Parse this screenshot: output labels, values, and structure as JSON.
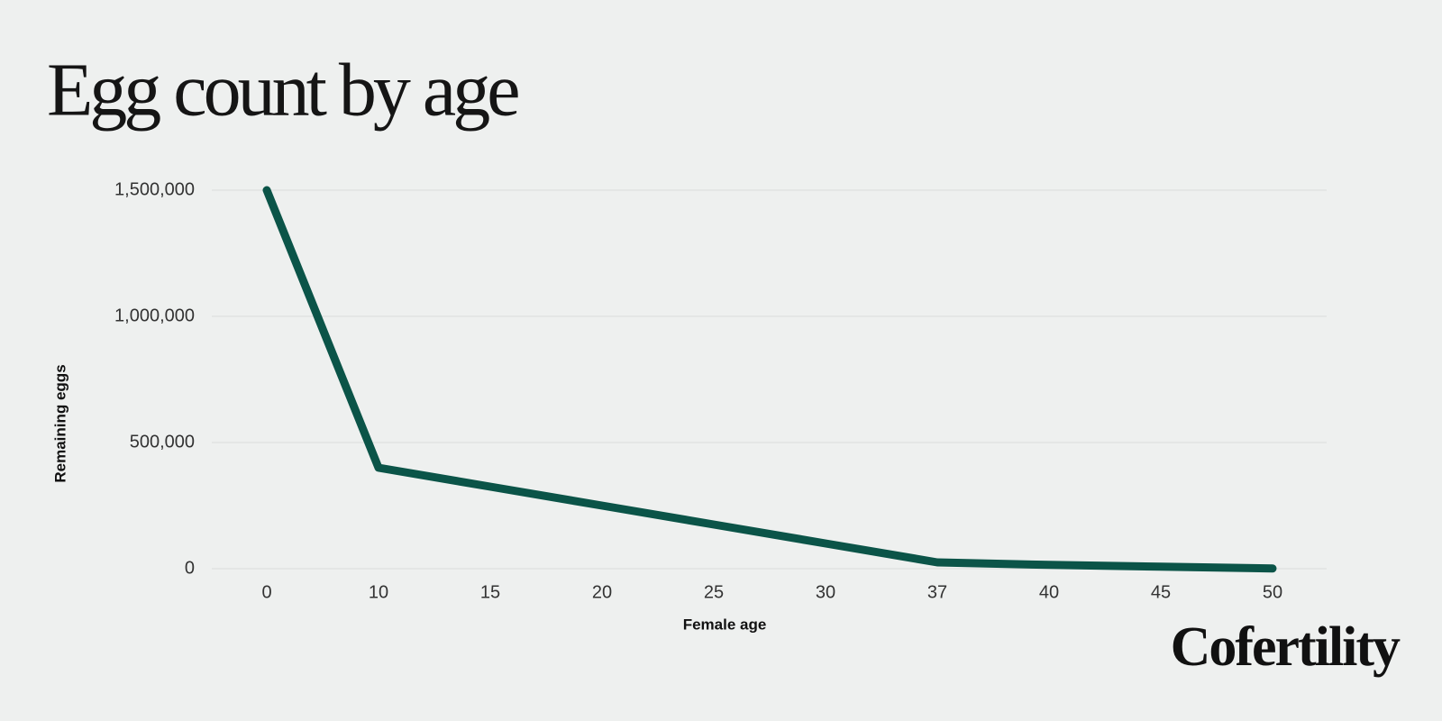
{
  "chart_data": {
    "type": "line",
    "title": "Egg count by age",
    "x_label": "Female age",
    "y_label": "Remaining eggs",
    "categories": [
      "0",
      "10",
      "15",
      "20",
      "25",
      "30",
      "37",
      "40",
      "45",
      "50"
    ],
    "series": [
      {
        "name": "Remaining eggs",
        "color": "#0b5448",
        "values": [
          1500000,
          400000,
          325000,
          250000,
          175000,
          100000,
          25000,
          15000,
          8000,
          1000
        ]
      }
    ],
    "ylim": [
      0,
      1500000
    ],
    "yticks": [
      {
        "value": 0,
        "label": "0"
      },
      {
        "value": 500000,
        "label": "500,000"
      },
      {
        "value": 1000000,
        "label": "1,000,000"
      },
      {
        "value": 1500000,
        "label": "1,500,000"
      }
    ],
    "grid": true
  },
  "brand": "Cofertility"
}
